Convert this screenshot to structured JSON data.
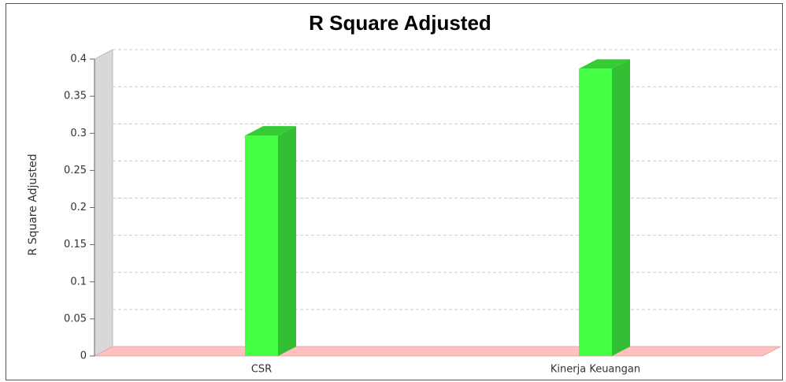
{
  "chart_data": {
    "type": "bar3d",
    "title": "R Square Adjusted",
    "y_label": "R Square Adjusted",
    "categories": [
      "CSR",
      "Kinerja Keuangan"
    ],
    "values": [
      0.297,
      0.387
    ],
    "color": "#44ff44",
    "ylim": [
      0,
      0.4
    ],
    "yticks": [
      0,
      0.05,
      0.1,
      0.15,
      0.2,
      0.25,
      0.3,
      0.35,
      0.4
    ],
    "grid": true
  }
}
